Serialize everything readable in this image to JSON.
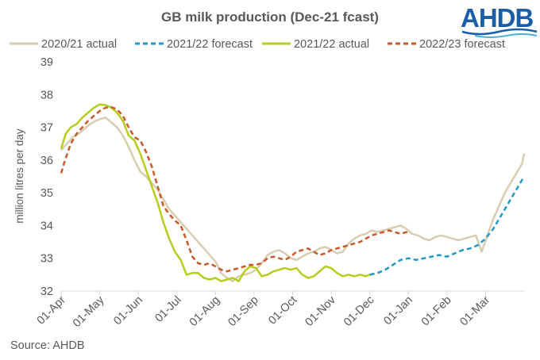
{
  "logo": {
    "text": "AHDB",
    "color": "#1a5ea8"
  },
  "source": "Source: AHDB",
  "chart_data": {
    "type": "line",
    "title": "GB milk production (Dec-21 fcast)",
    "xlabel": "",
    "ylabel": "million litres per day",
    "ylim": [
      32,
      39
    ],
    "yticks": [
      32,
      33,
      34,
      35,
      36,
      37,
      38,
      39
    ],
    "xlim": [
      0,
      12
    ],
    "xticks": [
      "01-Apr",
      "01-May",
      "01-Jun",
      "01-Jul",
      "01-Aug",
      "01-Sep",
      "01-Oct",
      "01-Nov",
      "01-Dec",
      "01-Jan",
      "01-Feb",
      "01-Mar"
    ],
    "legend_position": "top",
    "series": [
      {
        "name": "2020/21 actual",
        "color": "#d9ccb0",
        "dash": "solid",
        "x": [
          0,
          0.15,
          0.3,
          0.45,
          0.6,
          0.75,
          0.9,
          1.0,
          1.15,
          1.3,
          1.45,
          1.6,
          1.75,
          1.9,
          2.05,
          2.2,
          2.35,
          2.5,
          2.65,
          2.8,
          2.95,
          3.1,
          3.25,
          3.4,
          3.55,
          3.7,
          3.85,
          4.0,
          4.15,
          4.3,
          4.45,
          4.6,
          4.75,
          4.9,
          5.05,
          5.2,
          5.35,
          5.5,
          5.65,
          5.8,
          5.95,
          6.1,
          6.25,
          6.4,
          6.55,
          6.7,
          6.85,
          7.0,
          7.15,
          7.3,
          7.45,
          7.6,
          7.75,
          7.9,
          8.05,
          8.2,
          8.35,
          8.5,
          8.65,
          8.8,
          8.95,
          9.1,
          9.25,
          9.4,
          9.55,
          9.7,
          9.85,
          10.0,
          10.15,
          10.3,
          10.45,
          10.6,
          10.75,
          10.9,
          11.05,
          11.2,
          11.35,
          11.5,
          11.65,
          11.8,
          11.95,
          12.0
        ],
        "values": [
          36.3,
          36.5,
          36.7,
          36.8,
          36.95,
          37.1,
          37.2,
          37.25,
          37.3,
          37.15,
          37.0,
          36.75,
          36.4,
          36.0,
          35.65,
          35.5,
          35.3,
          35.1,
          34.8,
          34.5,
          34.3,
          34.1,
          33.9,
          33.7,
          33.5,
          33.3,
          33.1,
          32.9,
          32.55,
          32.4,
          32.3,
          32.45,
          32.5,
          32.55,
          32.65,
          32.85,
          33.1,
          33.2,
          33.25,
          33.15,
          33.0,
          32.95,
          33.05,
          33.15,
          33.2,
          33.3,
          33.35,
          33.25,
          33.15,
          33.2,
          33.45,
          33.6,
          33.7,
          33.75,
          33.85,
          33.8,
          33.85,
          33.9,
          33.95,
          34.0,
          33.9,
          33.75,
          33.7,
          33.6,
          33.55,
          33.65,
          33.7,
          33.65,
          33.6,
          33.55,
          33.6,
          33.65,
          33.7,
          33.2,
          33.7,
          34.2,
          34.6,
          35.0,
          35.3,
          35.6,
          35.9,
          36.2
        ]
      },
      {
        "name": "2021/22 forecast",
        "color": "#1f97c8",
        "dash": "dashed",
        "x": [
          8.0,
          8.2,
          8.4,
          8.6,
          8.8,
          9.0,
          9.2,
          9.4,
          9.6,
          9.8,
          10.0,
          10.2,
          10.4,
          10.6,
          10.8,
          11.0,
          11.2,
          11.4,
          11.6,
          11.8,
          12.0
        ],
        "values": [
          32.5,
          32.55,
          32.65,
          32.8,
          32.95,
          33.0,
          32.95,
          33.0,
          33.05,
          33.1,
          33.05,
          33.15,
          33.25,
          33.3,
          33.4,
          33.6,
          33.9,
          34.3,
          34.7,
          35.1,
          35.5
        ]
      },
      {
        "name": "2021/22 actual",
        "color": "#b7cc1b",
        "dash": "solid",
        "x": [
          0,
          0.12,
          0.25,
          0.4,
          0.55,
          0.7,
          0.85,
          1.0,
          1.15,
          1.3,
          1.45,
          1.6,
          1.75,
          1.9,
          2.05,
          2.2,
          2.35,
          2.5,
          2.65,
          2.8,
          2.95,
          3.1,
          3.25,
          3.4,
          3.55,
          3.7,
          3.85,
          4.0,
          4.15,
          4.3,
          4.45,
          4.6,
          4.75,
          4.9,
          5.05,
          5.2,
          5.35,
          5.5,
          5.65,
          5.8,
          5.95,
          6.1,
          6.25,
          6.4,
          6.55,
          6.7,
          6.85,
          7.0,
          7.15,
          7.3,
          7.45,
          7.6,
          7.75,
          7.9,
          8.0
        ],
        "values": [
          36.35,
          36.8,
          37.0,
          37.1,
          37.3,
          37.45,
          37.6,
          37.7,
          37.68,
          37.6,
          37.45,
          37.2,
          36.75,
          36.6,
          36.2,
          35.7,
          35.2,
          34.7,
          34.1,
          33.6,
          33.2,
          32.95,
          32.5,
          32.55,
          32.55,
          32.4,
          32.35,
          32.4,
          32.3,
          32.35,
          32.4,
          32.3,
          32.6,
          32.75,
          32.7,
          32.45,
          32.5,
          32.6,
          32.65,
          32.7,
          32.65,
          32.7,
          32.5,
          32.4,
          32.45,
          32.6,
          32.75,
          32.7,
          32.55,
          32.45,
          32.5,
          32.45,
          32.5,
          32.45,
          32.5
        ]
      },
      {
        "name": "2022/23 forecast",
        "color": "#c8592b",
        "dash": "dashed",
        "x": [
          0,
          0.1,
          0.25,
          0.4,
          0.55,
          0.7,
          0.85,
          1.0,
          1.15,
          1.3,
          1.45,
          1.6,
          1.75,
          1.9,
          2.05,
          2.2,
          2.35,
          2.5,
          2.65,
          2.8,
          2.95,
          3.1,
          3.25,
          3.4,
          3.55,
          3.7,
          3.85,
          4.0,
          4.15,
          4.3,
          4.45,
          4.6,
          4.75,
          4.9,
          5.05,
          5.2,
          5.35,
          5.5,
          5.65,
          5.8,
          5.95,
          6.1,
          6.25,
          6.4,
          6.55,
          6.7,
          6.85,
          7.0,
          7.15,
          7.3,
          7.45,
          7.6,
          7.75,
          7.9,
          8.05,
          8.2,
          8.35,
          8.5,
          8.65,
          8.8,
          8.95,
          9.0
        ],
        "values": [
          35.6,
          36.0,
          36.5,
          36.8,
          37.0,
          37.2,
          37.35,
          37.5,
          37.6,
          37.62,
          37.55,
          37.35,
          37.0,
          36.7,
          36.6,
          36.25,
          35.8,
          35.2,
          34.6,
          34.35,
          34.15,
          34.0,
          33.55,
          33.05,
          32.85,
          32.8,
          32.85,
          32.75,
          32.65,
          32.6,
          32.65,
          32.7,
          32.75,
          32.8,
          32.8,
          32.85,
          33.0,
          33.05,
          33.0,
          32.95,
          33.05,
          33.2,
          33.25,
          33.3,
          33.2,
          33.1,
          33.15,
          33.25,
          33.3,
          33.35,
          33.4,
          33.45,
          33.5,
          33.6,
          33.7,
          33.75,
          33.8,
          33.85,
          33.8,
          33.75,
          33.8,
          33.8
        ]
      }
    ]
  }
}
